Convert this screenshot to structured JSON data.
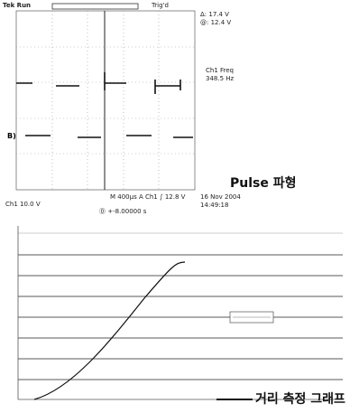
{
  "scope": {
    "status": "Tek Run",
    "trigger": "Trig'd",
    "delta": "Δ: 17.4 V",
    "at": "@: 12.4 V",
    "measure_label": "Ch1 Freq",
    "measure_value": "348.5 Hz",
    "channel": "Ch1  10.0 V",
    "timebase": "M 400μs  A  Ch1 ∫  12.8 V",
    "offset": "Ⓓ +-8.00000 s",
    "date": "16 Nov 2004",
    "time": "14:49:18"
  },
  "captions": {
    "pulse": "Pulse 파형",
    "distance": "거리 측정 그래프"
  }
}
